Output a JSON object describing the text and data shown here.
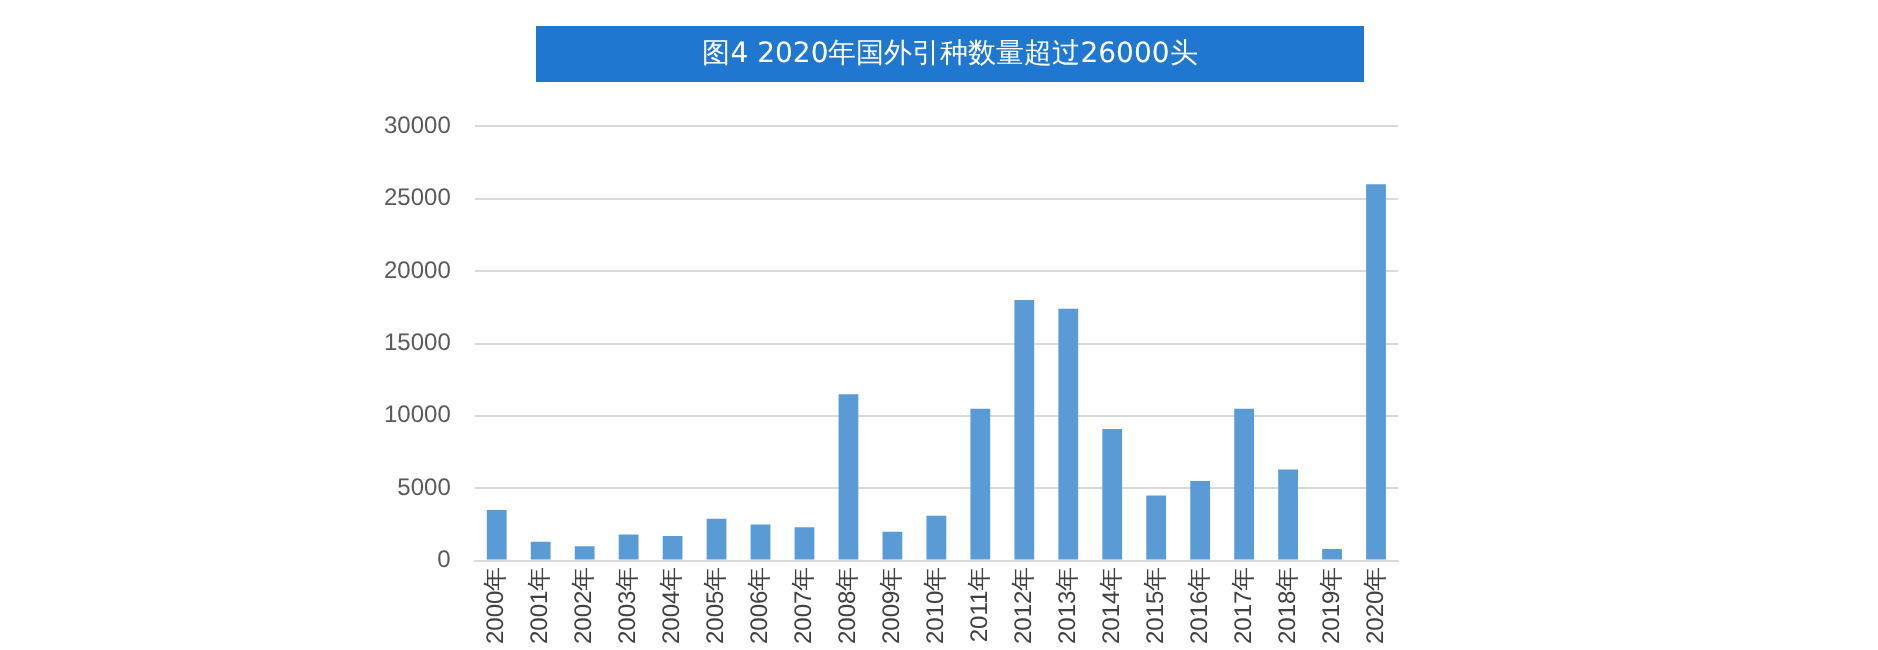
{
  "chart_data": {
    "type": "bar",
    "title": "图4 2020年国外引种数量超过26000头",
    "categories": [
      "2000年",
      "2001年",
      "2002年",
      "2003年",
      "2004年",
      "2005年",
      "2006年",
      "2007年",
      "2008年",
      "2009年",
      "2010年",
      "2011年",
      "2012年",
      "2013年",
      "2014年",
      "2015年",
      "2016年",
      "2017年",
      "2018年",
      "2019年",
      "2020年"
    ],
    "values": [
      3500,
      1300,
      1000,
      1800,
      1700,
      2900,
      2500,
      2300,
      11500,
      2000,
      3100,
      10500,
      18000,
      17400,
      9100,
      4500,
      5500,
      10500,
      6300,
      800,
      26000
    ],
    "color": "#5b9bd5",
    "ylim": [
      0,
      30000
    ],
    "yticks": [
      0,
      5000,
      10000,
      15000,
      20000,
      25000,
      30000
    ],
    "grid": "y"
  }
}
